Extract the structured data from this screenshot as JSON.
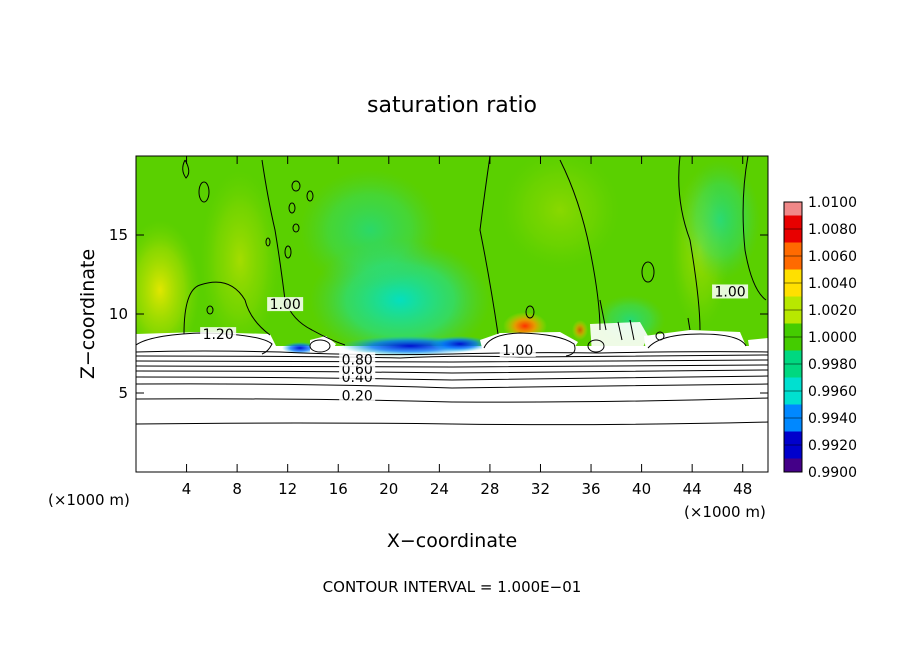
{
  "chart_data": {
    "type": "heatmap",
    "title": "saturation ratio",
    "xlabel": "X−coordinate",
    "ylabel": "Z−coordinate",
    "x_unit": "(×1000 m)",
    "y_unit": "(×1000 m)",
    "xlim": [
      0,
      50
    ],
    "ylim": [
      0,
      20
    ],
    "x_ticks": [
      4,
      8,
      12,
      16,
      20,
      24,
      28,
      32,
      36,
      40,
      44,
      48
    ],
    "y_ticks": [
      5,
      10,
      15
    ],
    "footer": "CONTOUR INTERVAL = 1.000E−01",
    "colorbar": {
      "min": 0.99,
      "max": 1.01,
      "labels": [
        "1.0100",
        "1.0080",
        "1.0060",
        "1.0040",
        "1.0020",
        "1.0000",
        "0.9980",
        "0.9960",
        "0.9940",
        "0.9920",
        "0.9900"
      ],
      "colors": [
        "#f08888",
        "#e80000",
        "#ff6a00",
        "#ffe000",
        "#b8e800",
        "#44cc00",
        "#00d880",
        "#00e0d0",
        "#0088ff",
        "#0000cc",
        "#440088"
      ]
    },
    "contour_labels": [
      {
        "text": "0.20",
        "x": 17.5,
        "y": 4.7
      },
      {
        "text": "0.40",
        "x": 17.5,
        "y": 5.9
      },
      {
        "text": "0.60",
        "x": 17.5,
        "y": 6.4
      },
      {
        "text": "0.80",
        "x": 17.5,
        "y": 7.0
      },
      {
        "text": "1.00",
        "x": 30.2,
        "y": 7.6
      },
      {
        "text": "1.00",
        "x": 11.8,
        "y": 10.5
      },
      {
        "text": "1.00",
        "x": 47.0,
        "y": 11.3
      },
      {
        "text": "1.20",
        "x": 6.5,
        "y": 8.6
      }
    ]
  }
}
